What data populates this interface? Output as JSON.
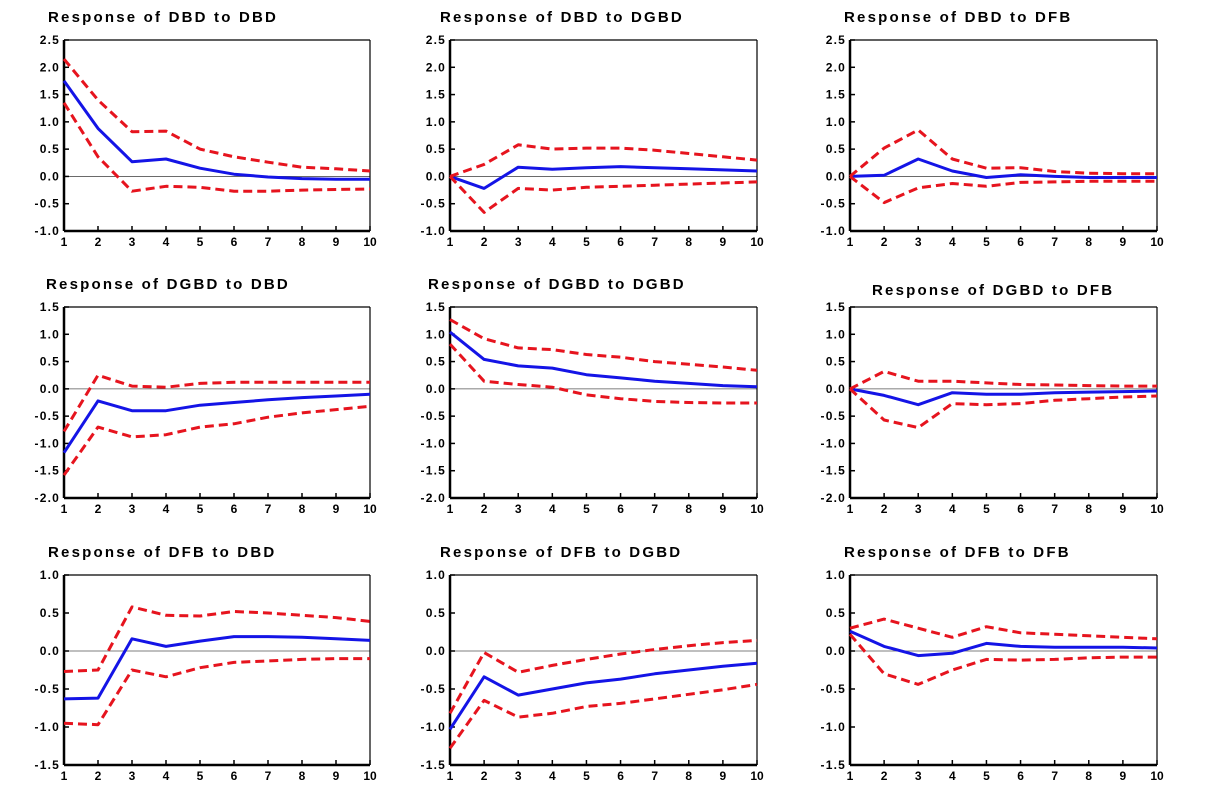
{
  "chart_data": [
    {
      "type": "line",
      "title": "Response of DBD to DBD",
      "x": [
        1,
        2,
        3,
        4,
        5,
        6,
        7,
        8,
        9,
        10
      ],
      "ylim": [
        -1.0,
        2.5
      ],
      "yticks": [
        "2.5",
        "2.0",
        "1.5",
        "1.0",
        "0.5",
        "0.0",
        "-0.5",
        "-1.0"
      ],
      "yticks_values": [
        2.5,
        2.0,
        1.5,
        1.0,
        0.5,
        0.0,
        -0.5,
        -1.0
      ],
      "series": [
        {
          "role": "response",
          "values": [
            1.75,
            0.88,
            0.27,
            0.32,
            0.15,
            0.04,
            -0.01,
            -0.04,
            -0.05,
            -0.05
          ]
        },
        {
          "role": "upper",
          "values": [
            2.15,
            1.4,
            0.82,
            0.83,
            0.5,
            0.36,
            0.26,
            0.17,
            0.14,
            0.1
          ]
        },
        {
          "role": "lower",
          "values": [
            1.35,
            0.36,
            -0.27,
            -0.18,
            -0.2,
            -0.27,
            -0.27,
            -0.25,
            -0.24,
            -0.23
          ]
        }
      ]
    },
    {
      "type": "line",
      "title": "Response of DBD to DGBD",
      "x": [
        1,
        2,
        3,
        4,
        5,
        6,
        7,
        8,
        9,
        10
      ],
      "ylim": [
        -1.0,
        2.5
      ],
      "yticks": [
        "2.5",
        "2.0",
        "1.5",
        "1.0",
        "0.5",
        "0.0",
        "-0.5",
        "-1.0"
      ],
      "yticks_values": [
        2.5,
        2.0,
        1.5,
        1.0,
        0.5,
        0.0,
        -0.5,
        -1.0
      ],
      "series": [
        {
          "role": "response",
          "values": [
            0.0,
            -0.22,
            0.17,
            0.13,
            0.16,
            0.18,
            0.16,
            0.14,
            0.12,
            0.1
          ]
        },
        {
          "role": "upper",
          "values": [
            0.0,
            0.22,
            0.58,
            0.5,
            0.52,
            0.52,
            0.48,
            0.42,
            0.36,
            0.3
          ]
        },
        {
          "role": "lower",
          "values": [
            0.0,
            -0.66,
            -0.22,
            -0.25,
            -0.2,
            -0.18,
            -0.16,
            -0.14,
            -0.12,
            -0.1
          ]
        }
      ]
    },
    {
      "type": "line",
      "title": "Response of DBD to DFB",
      "x": [
        1,
        2,
        3,
        4,
        5,
        6,
        7,
        8,
        9,
        10
      ],
      "ylim": [
        -1.0,
        2.5
      ],
      "yticks": [
        "2.5",
        "2.0",
        "1.5",
        "1.0",
        "0.5",
        "0.0",
        "-0.5",
        "-1.0"
      ],
      "yticks_values": [
        2.5,
        2.0,
        1.5,
        1.0,
        0.5,
        0.0,
        -0.5,
        -1.0
      ],
      "series": [
        {
          "role": "response",
          "values": [
            0.0,
            0.02,
            0.32,
            0.1,
            -0.02,
            0.03,
            0.0,
            -0.02,
            -0.02,
            -0.02
          ]
        },
        {
          "role": "upper",
          "values": [
            0.0,
            0.52,
            0.85,
            0.32,
            0.15,
            0.16,
            0.09,
            0.06,
            0.05,
            0.05
          ]
        },
        {
          "role": "lower",
          "values": [
            0.0,
            -0.48,
            -0.21,
            -0.13,
            -0.18,
            -0.11,
            -0.1,
            -0.09,
            -0.09,
            -0.09
          ]
        }
      ]
    },
    {
      "type": "line",
      "title": "Response of DGBD to DBD",
      "x": [
        1,
        2,
        3,
        4,
        5,
        6,
        7,
        8,
        9,
        10
      ],
      "ylim": [
        -2.0,
        1.5
      ],
      "yticks": [
        "1.5",
        "1.0",
        "0.5",
        "0.0",
        "-0.5",
        "-1.0",
        "-1.5",
        "-2.0"
      ],
      "yticks_values": [
        1.5,
        1.0,
        0.5,
        0.0,
        -0.5,
        -1.0,
        -1.5,
        -2.0
      ],
      "series": [
        {
          "role": "response",
          "values": [
            -1.17,
            -0.22,
            -0.4,
            -0.4,
            -0.3,
            -0.25,
            -0.2,
            -0.16,
            -0.13,
            -0.1
          ]
        },
        {
          "role": "upper",
          "values": [
            -0.78,
            0.25,
            0.05,
            0.03,
            0.1,
            0.12,
            0.12,
            0.12,
            0.12,
            0.12
          ]
        },
        {
          "role": "lower",
          "values": [
            -1.58,
            -0.7,
            -0.88,
            -0.84,
            -0.7,
            -0.64,
            -0.52,
            -0.44,
            -0.38,
            -0.32
          ]
        }
      ]
    },
    {
      "type": "line",
      "title": "Response of DGBD to DGBD",
      "x": [
        1,
        2,
        3,
        4,
        5,
        6,
        7,
        8,
        9,
        10
      ],
      "ylim": [
        -2.0,
        1.5
      ],
      "yticks": [
        "1.5",
        "1.0",
        "0.5",
        "0.0",
        "-0.5",
        "-1.0",
        "-1.5",
        "-2.0"
      ],
      "yticks_values": [
        1.5,
        1.0,
        0.5,
        0.0,
        -0.5,
        -1.0,
        -1.5,
        -2.0
      ],
      "series": [
        {
          "role": "response",
          "values": [
            1.04,
            0.54,
            0.42,
            0.38,
            0.26,
            0.2,
            0.14,
            0.1,
            0.06,
            0.04
          ]
        },
        {
          "role": "upper",
          "values": [
            1.27,
            0.92,
            0.75,
            0.72,
            0.63,
            0.58,
            0.5,
            0.45,
            0.4,
            0.34
          ]
        },
        {
          "role": "lower",
          "values": [
            0.82,
            0.14,
            0.08,
            0.03,
            -0.11,
            -0.18,
            -0.23,
            -0.25,
            -0.26,
            -0.26
          ]
        }
      ]
    },
    {
      "type": "line",
      "title": "Response of DGBD to DFB",
      "x": [
        1,
        2,
        3,
        4,
        5,
        6,
        7,
        8,
        9,
        10
      ],
      "ylim": [
        -2.0,
        1.5
      ],
      "yticks": [
        "1.5",
        "1.0",
        "0.5",
        "0.0",
        "-0.5",
        "-1.0",
        "-1.5",
        "-2.0"
      ],
      "yticks_values": [
        1.5,
        1.0,
        0.5,
        0.0,
        -0.5,
        -1.0,
        -1.5,
        -2.0
      ],
      "series": [
        {
          "role": "response",
          "values": [
            0.0,
            -0.12,
            -0.29,
            -0.07,
            -0.1,
            -0.1,
            -0.07,
            -0.06,
            -0.05,
            -0.04
          ]
        },
        {
          "role": "upper",
          "values": [
            0.0,
            0.32,
            0.14,
            0.14,
            0.11,
            0.08,
            0.07,
            0.06,
            0.05,
            0.05
          ]
        },
        {
          "role": "lower",
          "values": [
            0.0,
            -0.57,
            -0.71,
            -0.27,
            -0.29,
            -0.27,
            -0.21,
            -0.18,
            -0.15,
            -0.13
          ]
        }
      ]
    },
    {
      "type": "line",
      "title": "Response of DFB to DBD",
      "x": [
        1,
        2,
        3,
        4,
        5,
        6,
        7,
        8,
        9,
        10
      ],
      "ylim": [
        -1.5,
        1.0
      ],
      "yticks": [
        "1.0",
        "0.5",
        "0.0",
        "-0.5",
        "-1.0",
        "-1.5"
      ],
      "yticks_values": [
        1.0,
        0.5,
        0.0,
        -0.5,
        -1.0,
        -1.5
      ],
      "series": [
        {
          "role": "response",
          "values": [
            -0.63,
            -0.62,
            0.16,
            0.06,
            0.13,
            0.19,
            0.19,
            0.18,
            0.16,
            0.14
          ]
        },
        {
          "role": "upper",
          "values": [
            -0.27,
            -0.25,
            0.58,
            0.47,
            0.46,
            0.52,
            0.5,
            0.47,
            0.44,
            0.39
          ]
        },
        {
          "role": "lower",
          "values": [
            -0.95,
            -0.97,
            -0.25,
            -0.34,
            -0.22,
            -0.15,
            -0.13,
            -0.11,
            -0.1,
            -0.1
          ]
        }
      ]
    },
    {
      "type": "line",
      "title": "Response of DFB to DGBD",
      "x": [
        1,
        2,
        3,
        4,
        5,
        6,
        7,
        8,
        9,
        10
      ],
      "ylim": [
        -1.5,
        1.0
      ],
      "yticks": [
        "1.0",
        "0.5",
        "0.0",
        "-0.5",
        "-1.0",
        "-1.5"
      ],
      "yticks_values": [
        1.0,
        0.5,
        0.0,
        -0.5,
        -1.0,
        -1.5
      ],
      "series": [
        {
          "role": "response",
          "values": [
            -1.03,
            -0.34,
            -0.58,
            -0.5,
            -0.42,
            -0.37,
            -0.3,
            -0.25,
            -0.2,
            -0.16
          ]
        },
        {
          "role": "upper",
          "values": [
            -0.82,
            -0.02,
            -0.28,
            -0.19,
            -0.11,
            -0.04,
            0.02,
            0.07,
            0.11,
            0.14
          ]
        },
        {
          "role": "lower",
          "values": [
            -1.28,
            -0.65,
            -0.87,
            -0.82,
            -0.73,
            -0.69,
            -0.63,
            -0.57,
            -0.51,
            -0.44
          ]
        }
      ]
    },
    {
      "type": "line",
      "title": "Response of DFB to DFB",
      "x": [
        1,
        2,
        3,
        4,
        5,
        6,
        7,
        8,
        9,
        10
      ],
      "ylim": [
        -1.5,
        1.0
      ],
      "yticks": [
        "1.0",
        "0.5",
        "0.0",
        "-0.5",
        "-1.0",
        "-1.5"
      ],
      "yticks_values": [
        1.0,
        0.5,
        0.0,
        -0.5,
        -1.0,
        -1.5
      ],
      "series": [
        {
          "role": "response",
          "values": [
            0.26,
            0.06,
            -0.06,
            -0.03,
            0.1,
            0.06,
            0.05,
            0.05,
            0.05,
            0.04
          ]
        },
        {
          "role": "upper",
          "values": [
            0.3,
            0.42,
            0.3,
            0.18,
            0.32,
            0.24,
            0.22,
            0.2,
            0.18,
            0.16
          ]
        },
        {
          "role": "lower",
          "values": [
            0.22,
            -0.3,
            -0.44,
            -0.25,
            -0.11,
            -0.12,
            -0.11,
            -0.09,
            -0.08,
            -0.08
          ]
        }
      ]
    }
  ],
  "colors": {
    "response": "#1414e6",
    "bands": "#e6141e",
    "axis": "#000000",
    "zero_line": "#555555"
  }
}
